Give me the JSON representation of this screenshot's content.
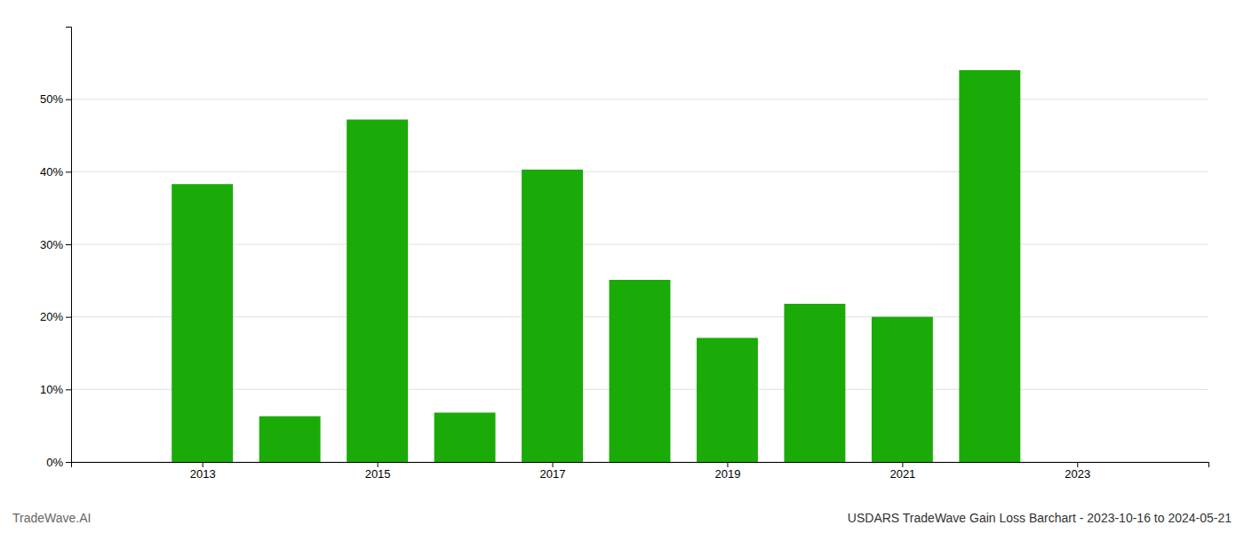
{
  "chart_data": {
    "type": "bar",
    "title": "USDARS TradeWave Gain Loss Barchart - 2023-10-16 to 2024-05-21",
    "annotations": [
      "TradeWave.AI"
    ],
    "x": [
      2013,
      2014,
      2015,
      2016,
      2017,
      2018,
      2019,
      2020,
      2021,
      2022
    ],
    "values": [
      0.383,
      0.063,
      0.472,
      0.068,
      0.403,
      0.251,
      0.171,
      0.218,
      0.2,
      0.54
    ],
    "color": "#1aab08",
    "xlim": [
      2011.5,
      2024.5
    ],
    "xticks": [
      2013,
      2015,
      2017,
      2019,
      2021,
      2023
    ],
    "ylim": [
      0,
      0.6
    ],
    "yticks": [
      {
        "value": 0.0,
        "label": "0%"
      },
      {
        "value": 0.1,
        "label": "10%"
      },
      {
        "value": 0.2,
        "label": "20%"
      },
      {
        "value": 0.3,
        "label": "30%"
      },
      {
        "value": 0.4,
        "label": "40%"
      },
      {
        "value": 0.5,
        "label": "50%"
      }
    ],
    "grid": true
  }
}
